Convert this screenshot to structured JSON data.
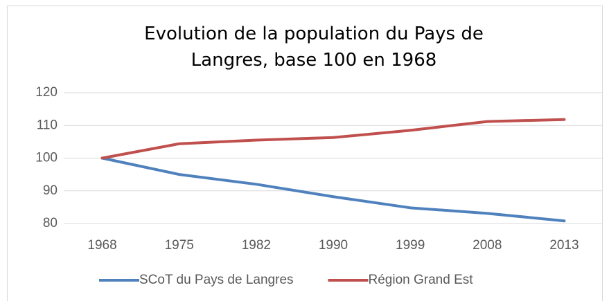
{
  "chart_data": {
    "type": "line",
    "title": "Evolution de la population du Pays de Langres, base 100 en 1968",
    "categories": [
      "1968",
      "1975",
      "1982",
      "1990",
      "1999",
      "2008",
      "2013"
    ],
    "series": [
      {
        "name": "SCoT du Pays de Langres",
        "color": "#4f81bd",
        "values": [
          100,
          95,
          92,
          88.2,
          84.8,
          83.1,
          80.8
        ]
      },
      {
        "name": "Région Grand Est",
        "color": "#c0504d",
        "values": [
          100,
          104.4,
          105.5,
          106.3,
          108.5,
          111.2,
          111.8
        ]
      }
    ],
    "ylim": [
      80,
      120
    ],
    "yticks": [
      80,
      90,
      100,
      110,
      120
    ],
    "grid": true,
    "legend": "bottom"
  }
}
